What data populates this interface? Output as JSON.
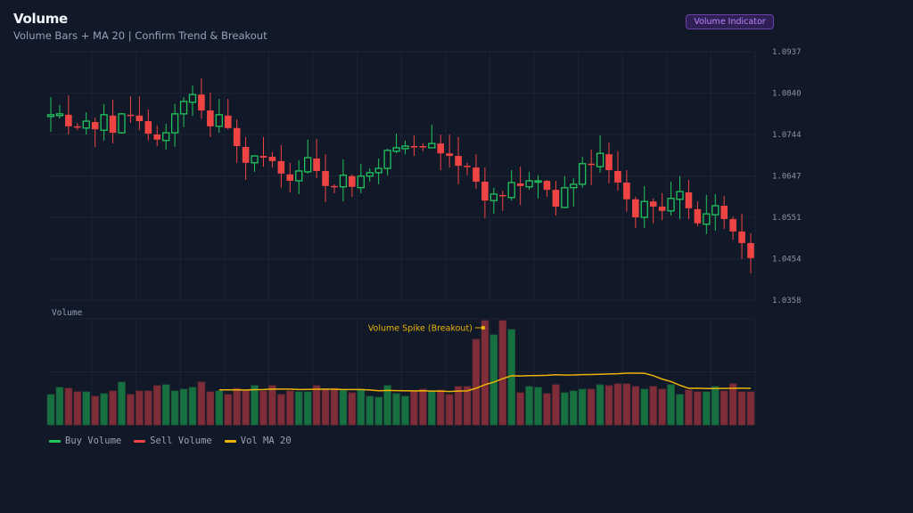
{
  "header": {
    "title": "Volume",
    "subtitle": "Volume Bars + MA 20 | Confirm Trend & Breakout",
    "badge": "Volume Indicator"
  },
  "colors": {
    "background": "#111827",
    "up": "#22c55e",
    "down": "#ef4444",
    "up_volume": "#17703f",
    "down_volume": "#7f2d38",
    "ma": "#eab308",
    "grid": "#1c2434",
    "badge_text": "#c084fc"
  },
  "chart_data": [
    {
      "type": "candlestick",
      "title": "",
      "ylim": [
        1.0358,
        1.0937
      ],
      "y_ticks": [
        "1.0937",
        "1.0840",
        "1.0744",
        "1.0647",
        "1.0551",
        "1.0454",
        "1.0358"
      ],
      "grid": true,
      "candles": [
        [
          1.0786,
          1.0831,
          1.075,
          1.079
        ],
        [
          1.0788,
          1.0813,
          1.0781,
          1.0792
        ],
        [
          1.079,
          1.0835,
          1.0744,
          1.0763
        ],
        [
          1.0763,
          1.0771,
          1.0754,
          1.0761
        ],
        [
          1.0759,
          1.0796,
          1.0744,
          1.0775
        ],
        [
          1.0773,
          1.0783,
          1.0715,
          1.0756
        ],
        [
          1.0754,
          1.0815,
          1.073,
          1.079
        ],
        [
          1.0788,
          1.0825,
          1.0723,
          1.0748
        ],
        [
          1.0748,
          1.0794,
          1.0746,
          1.0792
        ],
        [
          1.079,
          1.0833,
          1.0771,
          1.0788
        ],
        [
          1.0788,
          1.0833,
          1.0754,
          1.0775
        ],
        [
          1.0775,
          1.0802,
          1.073,
          1.0746
        ],
        [
          1.0744,
          1.0765,
          1.0717,
          1.0732
        ],
        [
          1.073,
          1.0769,
          1.0709,
          1.0748
        ],
        [
          1.0748,
          1.0815,
          1.0715,
          1.0792
        ],
        [
          1.0792,
          1.0831,
          1.0761,
          1.0821
        ],
        [
          1.0819,
          1.0858,
          1.0788,
          1.0837
        ],
        [
          1.0837,
          1.0875,
          1.0781,
          1.08
        ],
        [
          1.08,
          1.0842,
          1.0738,
          1.0763
        ],
        [
          1.0763,
          1.0827,
          1.0748,
          1.079
        ],
        [
          1.0788,
          1.0827,
          1.0756,
          1.0759
        ],
        [
          1.0759,
          1.0779,
          1.0678,
          1.0717
        ],
        [
          1.0715,
          1.0738,
          1.0638,
          1.0678
        ],
        [
          1.0678,
          1.0694,
          1.0657,
          1.0694
        ],
        [
          1.0694,
          1.0738,
          1.0669,
          1.069
        ],
        [
          1.0692,
          1.0703,
          1.0667,
          1.0682
        ],
        [
          1.0682,
          1.0719,
          1.062,
          1.0653
        ],
        [
          1.0651,
          1.0678,
          1.0609,
          1.0636
        ],
        [
          1.0636,
          1.0684,
          1.0605,
          1.0659
        ],
        [
          1.0657,
          1.0732,
          1.0653,
          1.069
        ],
        [
          1.0688,
          1.0734,
          1.0642,
          1.0659
        ],
        [
          1.0659,
          1.0698,
          1.0586,
          1.0624
        ],
        [
          1.0624,
          1.0628,
          1.0607,
          1.0622
        ],
        [
          1.0622,
          1.0686,
          1.0588,
          1.0649
        ],
        [
          1.0647,
          1.0651,
          1.0599,
          1.0622
        ],
        [
          1.062,
          1.0676,
          1.0607,
          1.0647
        ],
        [
          1.0647,
          1.0665,
          1.0634,
          1.0655
        ],
        [
          1.0655,
          1.0688,
          1.0628,
          1.0665
        ],
        [
          1.0665,
          1.0711,
          1.0649,
          1.0707
        ],
        [
          1.0705,
          1.0746,
          1.07,
          1.0713
        ],
        [
          1.0711,
          1.073,
          1.0698,
          1.0717
        ],
        [
          1.0717,
          1.0742,
          1.0694,
          1.0715
        ],
        [
          1.0717,
          1.0723,
          1.0705,
          1.0715
        ],
        [
          1.0713,
          1.0767,
          1.0713,
          1.0723
        ],
        [
          1.0723,
          1.0744,
          1.0661,
          1.07
        ],
        [
          1.07,
          1.0744,
          1.0667,
          1.0694
        ],
        [
          1.0694,
          1.0738,
          1.0628,
          1.0671
        ],
        [
          1.0671,
          1.0678,
          1.0649,
          1.0669
        ],
        [
          1.0667,
          1.0698,
          1.0617,
          1.0634
        ],
        [
          1.0634,
          1.0667,
          1.0549,
          1.059
        ],
        [
          1.059,
          1.062,
          1.0559,
          1.0605
        ],
        [
          1.0603,
          1.0613,
          1.0566,
          1.0601
        ],
        [
          1.0597,
          1.0661,
          1.059,
          1.0632
        ],
        [
          1.063,
          1.0669,
          1.058,
          1.0624
        ],
        [
          1.0622,
          1.0657,
          1.0615,
          1.0636
        ],
        [
          1.0634,
          1.0649,
          1.0595,
          1.0636
        ],
        [
          1.0636,
          1.0638,
          1.0599,
          1.0615
        ],
        [
          1.0615,
          1.0636,
          1.0555,
          1.0576
        ],
        [
          1.0574,
          1.0647,
          1.0572,
          1.062
        ],
        [
          1.062,
          1.0642,
          1.0576,
          1.0628
        ],
        [
          1.0628,
          1.0692,
          1.062,
          1.0676
        ],
        [
          1.0676,
          1.0709,
          1.0626,
          1.0674
        ],
        [
          1.0669,
          1.0742,
          1.0655,
          1.07
        ],
        [
          1.0698,
          1.0725,
          1.063,
          1.0661
        ],
        [
          1.0659,
          1.0705,
          1.0613,
          1.0632
        ],
        [
          1.0632,
          1.0661,
          1.0564,
          1.0593
        ],
        [
          1.0593,
          1.0599,
          1.0526,
          1.0551
        ],
        [
          1.0551,
          1.0624,
          1.0526,
          1.0588
        ],
        [
          1.0588,
          1.0595,
          1.0537,
          1.0576
        ],
        [
          1.0576,
          1.0607,
          1.0545,
          1.0566
        ],
        [
          1.0566,
          1.0634,
          1.0555,
          1.0595
        ],
        [
          1.0593,
          1.0647,
          1.0547,
          1.0611
        ],
        [
          1.0609,
          1.0638,
          1.0547,
          1.0572
        ],
        [
          1.057,
          1.0588,
          1.053,
          1.0537
        ],
        [
          1.0535,
          1.0603,
          1.0512,
          1.0559
        ],
        [
          1.0557,
          1.0605,
          1.052,
          1.0578
        ],
        [
          1.0578,
          1.0601,
          1.0524,
          1.0547
        ],
        [
          1.0547,
          1.0553,
          1.0499,
          1.0518
        ],
        [
          1.0518,
          1.0559,
          1.0454,
          1.0491
        ],
        [
          1.0491,
          1.0514,
          1.042,
          1.0456
        ]
      ]
    },
    {
      "type": "bar",
      "pane_label": "Volume",
      "ylim": [
        0,
        1190
      ],
      "ma_period": 20,
      "series": [
        {
          "name": "Buy Volume",
          "key": "buy"
        },
        {
          "name": "Sell Volume",
          "key": "sell"
        },
        {
          "name": "Vol MA 20",
          "key": "ma"
        }
      ],
      "volumes": [
        340,
        420,
        410,
        370,
        370,
        320,
        350,
        380,
        480,
        340,
        380,
        380,
        440,
        450,
        380,
        400,
        420,
        480,
        370,
        380,
        340,
        410,
        390,
        440,
        380,
        440,
        340,
        380,
        370,
        370,
        440,
        400,
        410,
        390,
        360,
        400,
        320,
        310,
        440,
        350,
        320,
        380,
        400,
        380,
        390,
        340,
        430,
        430,
        960,
        1170,
        1010,
        1170,
        1070,
        360,
        430,
        420,
        350,
        450,
        360,
        380,
        400,
        400,
        450,
        440,
        460,
        460,
        430,
        400,
        430,
        400,
        450,
        340,
        390,
        370,
        370,
        430,
        380,
        460,
        370,
        370
      ],
      "sides": [
        "buy",
        "buy",
        "sell",
        "sell",
        "buy",
        "sell",
        "buy",
        "sell",
        "buy",
        "sell",
        "sell",
        "sell",
        "sell",
        "buy",
        "buy",
        "buy",
        "buy",
        "sell",
        "sell",
        "buy",
        "sell",
        "sell",
        "sell",
        "buy",
        "sell",
        "sell",
        "sell",
        "sell",
        "buy",
        "buy",
        "sell",
        "sell",
        "sell",
        "buy",
        "sell",
        "buy",
        "buy",
        "buy",
        "buy",
        "buy",
        "buy",
        "sell",
        "sell",
        "buy",
        "sell",
        "sell",
        "sell",
        "sell",
        "sell",
        "sell",
        "buy",
        "sell",
        "buy",
        "sell",
        "buy",
        "buy",
        "sell",
        "sell",
        "buy",
        "buy",
        "buy",
        "sell",
        "buy",
        "sell",
        "sell",
        "sell",
        "sell",
        "buy",
        "sell",
        "sell",
        "buy",
        "buy",
        "sell",
        "sell",
        "buy",
        "buy",
        "sell",
        "sell",
        "sell",
        "sell"
      ],
      "annotation": {
        "text": "Volume Spike (Breakout)",
        "bar_index": 49
      }
    }
  ]
}
